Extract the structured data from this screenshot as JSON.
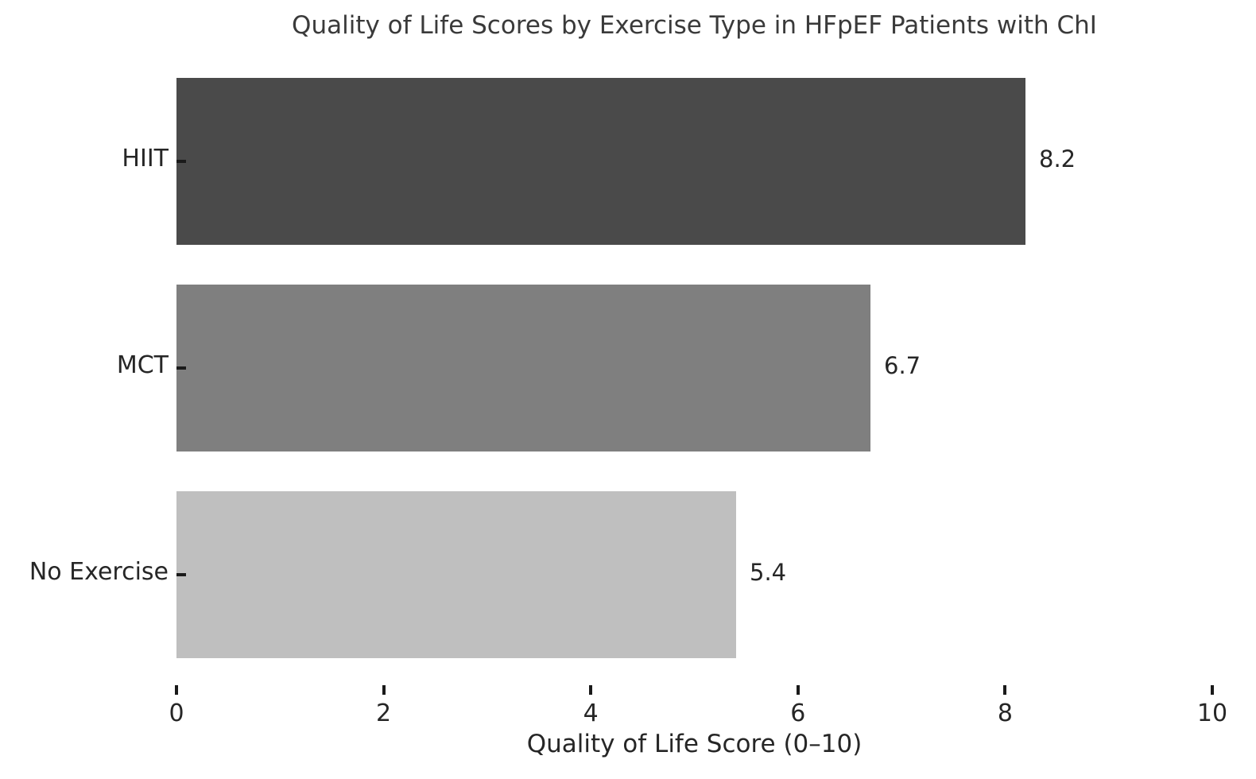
{
  "chart_data": {
    "type": "bar",
    "orientation": "horizontal",
    "title": "Quality of Life Scores by Exercise Type in HFpEF Patients with ChI",
    "xlabel": "Quality of Life Score (0–10)",
    "ylabel": "",
    "categories": [
      "HIIT",
      "MCT",
      "No Exercise"
    ],
    "values": [
      8.2,
      6.7,
      5.4
    ],
    "value_labels": [
      "8.2",
      "6.7",
      "5.4"
    ],
    "bar_colors": [
      "#4a4a4a",
      "#7f7f7f",
      "#bfbfbf"
    ],
    "xlim": [
      0,
      10
    ],
    "xticks": [
      0,
      2,
      4,
      6,
      8,
      10
    ],
    "xtick_labels": [
      "0",
      "2",
      "4",
      "6",
      "8",
      "10"
    ],
    "grid": false,
    "legend": false,
    "background_color": "#ffffff",
    "text_color": "#262626"
  }
}
